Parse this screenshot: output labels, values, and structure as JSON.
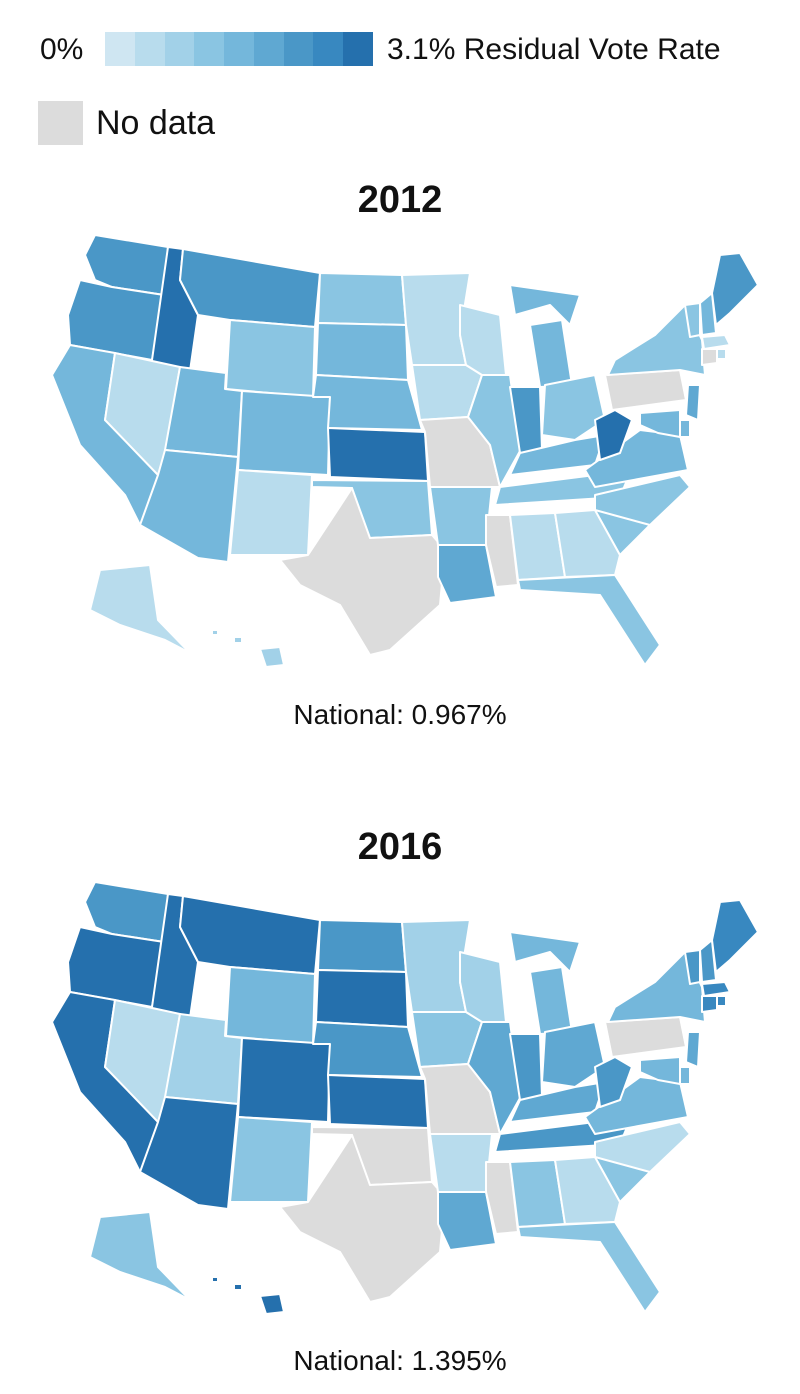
{
  "legend": {
    "min_label": "0%",
    "max_label": "3.1% Residual Vote Rate",
    "ramp": [
      "#cfe6f2",
      "#b8dced",
      "#a2d1e8",
      "#8ac5e2",
      "#74b7db",
      "#5fa8d2",
      "#4a97c7",
      "#3888c0",
      "#2570ad"
    ],
    "nodata_label": "No data",
    "nodata_color": "#dcdcdc"
  },
  "maps": [
    {
      "title": "2012",
      "national": "National: 0.967%",
      "state_shading": {
        "WA": 6,
        "OR": 6,
        "ID": 8,
        "MT": 6,
        "WY": 3,
        "CA": 4,
        "NV": 1,
        "UT": 4,
        "AZ": 4,
        "CO": 4,
        "NM": 1,
        "ND": 3,
        "SD": 4,
        "NE": 4,
        "KS": 8,
        "OK": 3,
        "TX": null,
        "MN": 1,
        "IA": 1,
        "MO": null,
        "AR": 3,
        "LA": 5,
        "WI": 1,
        "IL": 3,
        "MI": 4,
        "IN": 6,
        "OH": 3,
        "KY": 4,
        "TN": 3,
        "MS": null,
        "AL": 1,
        "GA": 1,
        "FL": 3,
        "SC": 3,
        "NC": 3,
        "VA": 4,
        "WV": 8,
        "PA": null,
        "NY": 3,
        "VT": 3,
        "NH": 4,
        "ME": 6,
        "MA": 1,
        "CT": null,
        "NJ": 5,
        "DE": 4,
        "MD": 4,
        "RI": 1,
        "AK": 1,
        "HI": 2
      }
    },
    {
      "title": "2016",
      "national": "National: 1.395%",
      "state_shading": {
        "WA": 6,
        "OR": 8,
        "ID": 8,
        "MT": 8,
        "WY": 4,
        "CA": 8,
        "NV": 1,
        "UT": 2,
        "AZ": 8,
        "CO": 8,
        "NM": 3,
        "ND": 6,
        "SD": 8,
        "NE": 6,
        "KS": 8,
        "OK": null,
        "TX": null,
        "MN": 2,
        "IA": 3,
        "MO": null,
        "AR": 1,
        "LA": 5,
        "WI": 2,
        "IL": 5,
        "MI": 4,
        "IN": 6,
        "OH": 5,
        "KY": 5,
        "TN": 6,
        "MS": null,
        "AL": 3,
        "GA": 1,
        "FL": 3,
        "SC": 3,
        "NC": 1,
        "VA": 4,
        "WV": 6,
        "PA": null,
        "NY": 4,
        "VT": 6,
        "NH": 6,
        "ME": 7,
        "MA": 7,
        "CT": 7,
        "NJ": 5,
        "DE": 4,
        "MD": 4,
        "RI": 7,
        "AK": 3,
        "HI": 8
      }
    }
  ]
}
